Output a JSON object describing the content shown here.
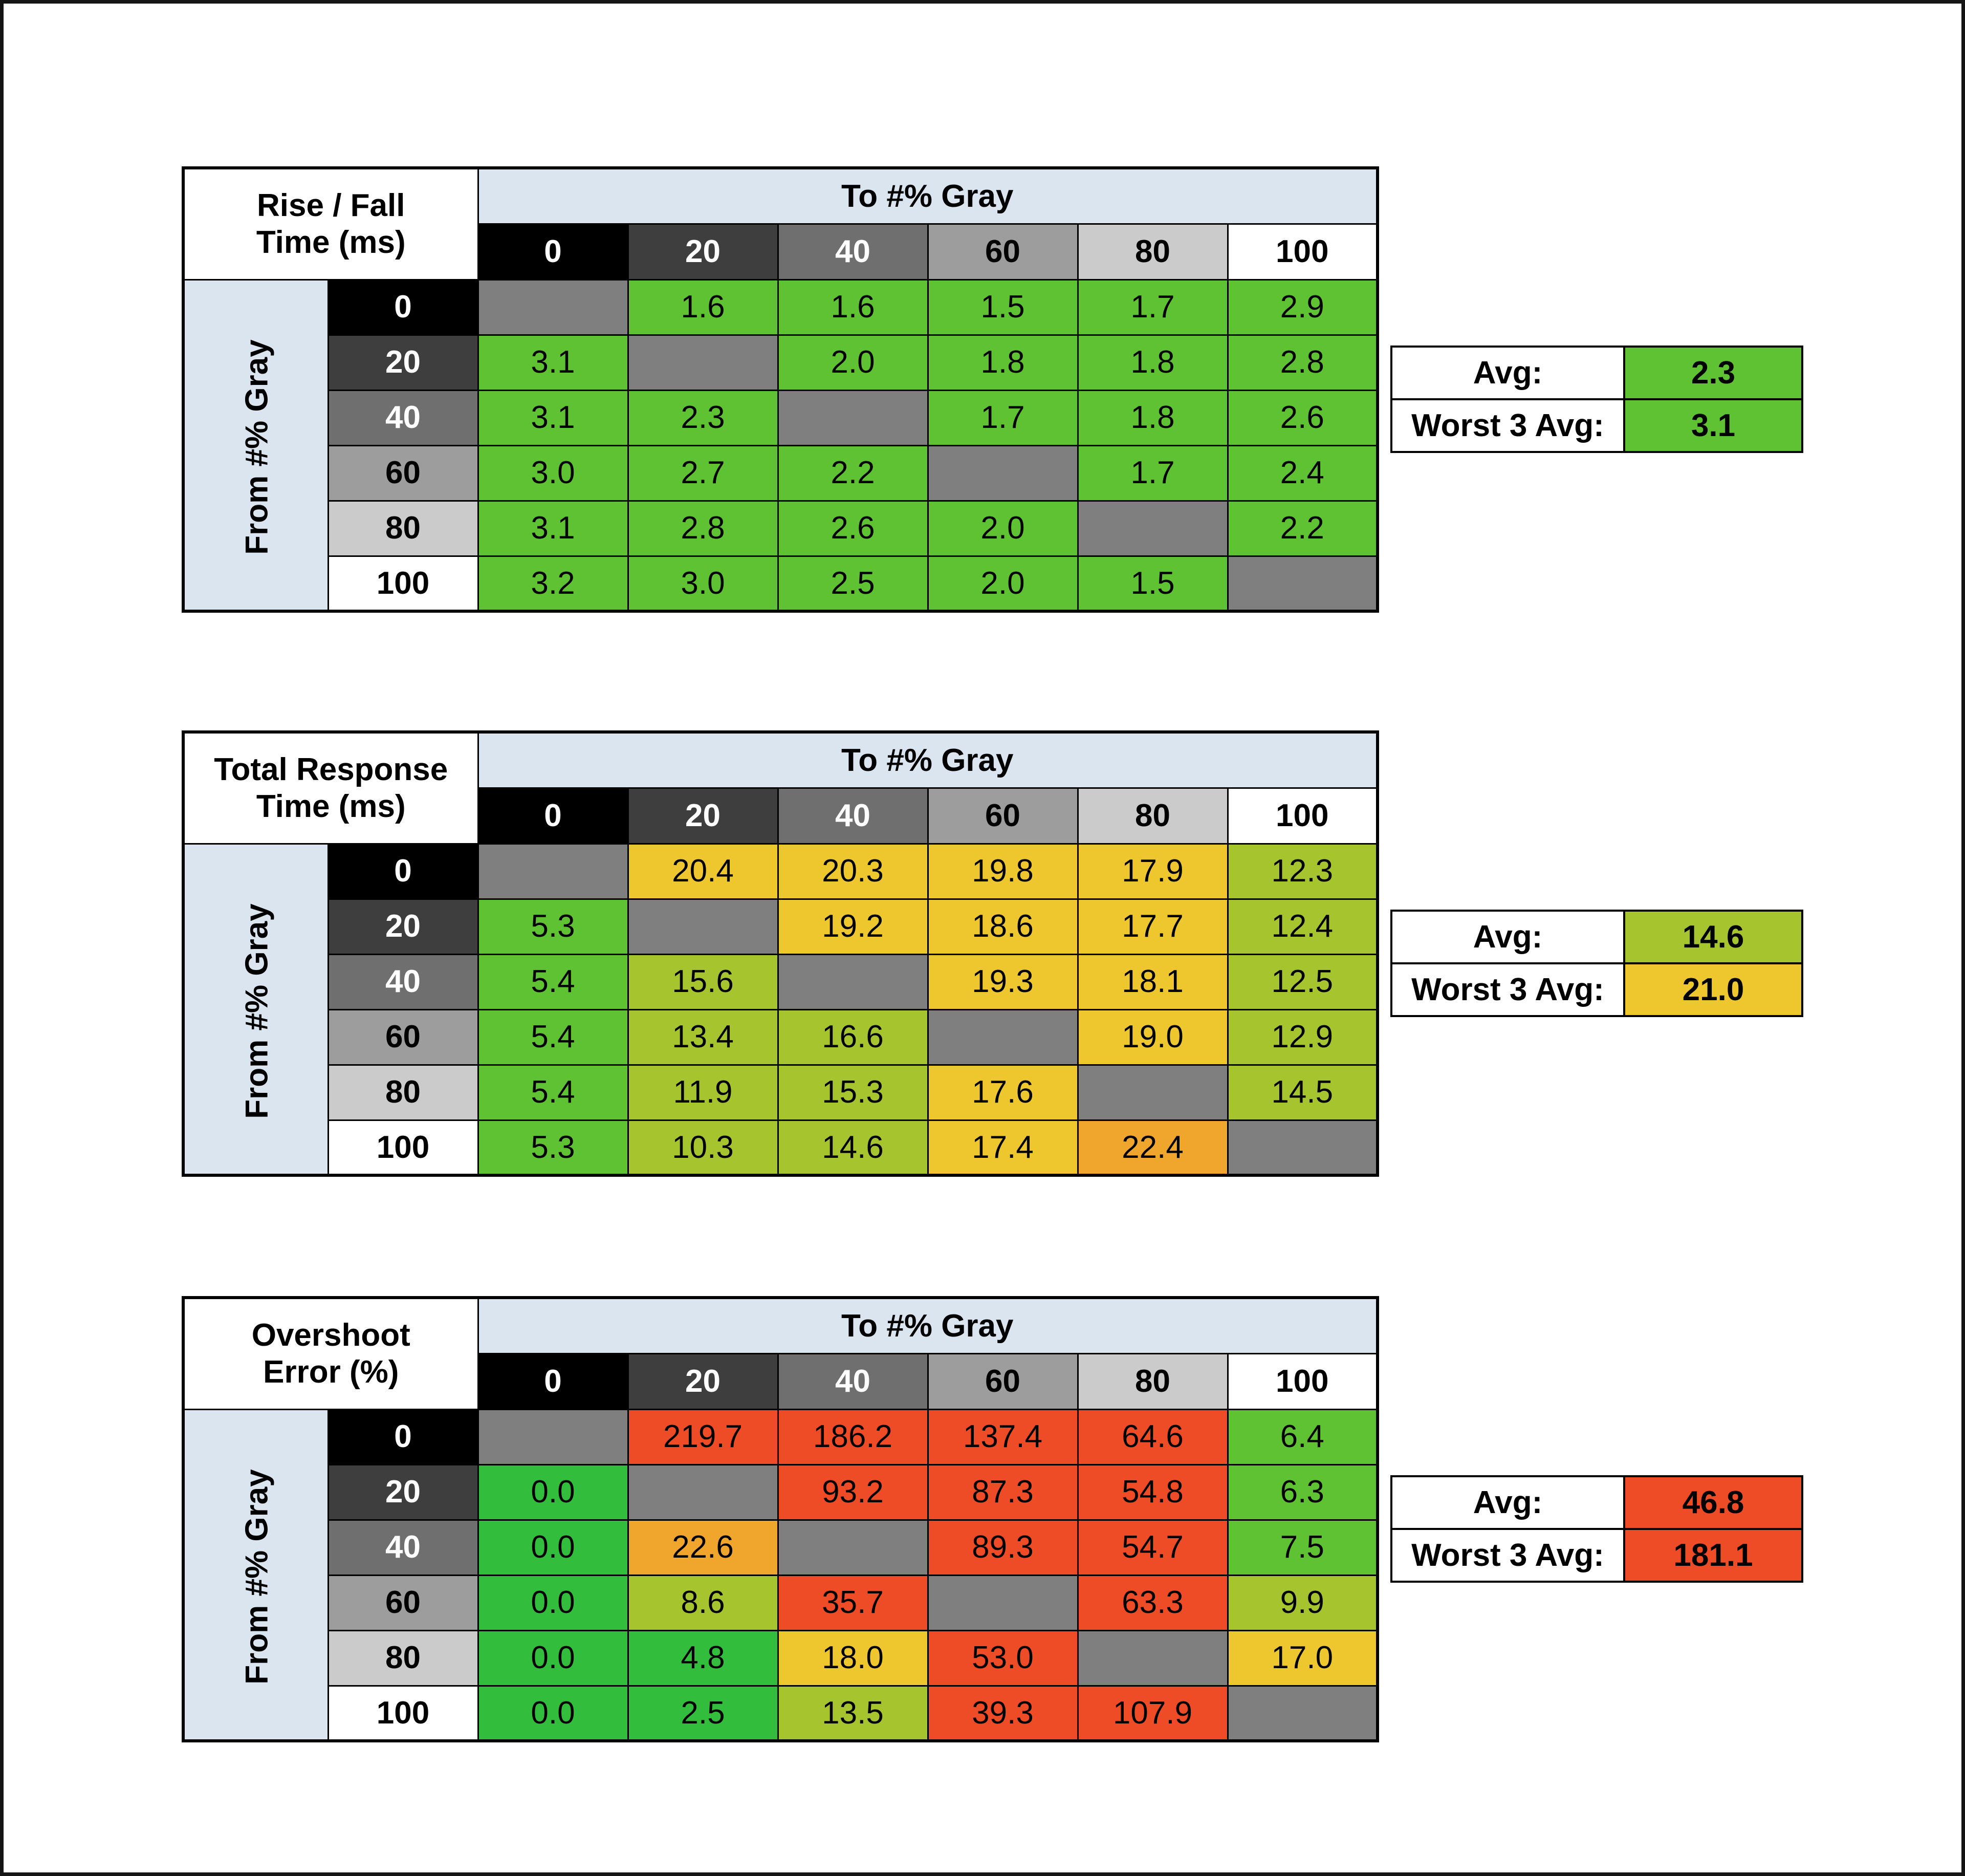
{
  "page": {
    "background": "#ffffff",
    "border_color": "#161616"
  },
  "palette": {
    "green": "#33bd3c",
    "green2": "#5ec232",
    "yellowgreen": "#a6c42e",
    "yellow": "#eec72f",
    "orange": "#f0a62c",
    "red": "#ee4c27"
  },
  "grays": [
    "#000000",
    "#3e3e3e",
    "#6f6f6f",
    "#9d9d9d",
    "#cbcbcb",
    "#ffffff"
  ],
  "colors": {
    "diag": "#7f7f7f",
    "header_blue": "#dbe5f0",
    "grid": "#000000"
  },
  "chart_data": [
    {
      "type": "heatmap",
      "title": "Rise / Fall Time (ms)",
      "title_line1": "Rise / Fall",
      "title_line2": "Time (ms)",
      "x_label": "To #% Gray",
      "y_label": "From #% Gray",
      "x_ticks": [
        "0",
        "20",
        "40",
        "60",
        "80",
        "100"
      ],
      "y_ticks": [
        "0",
        "20",
        "40",
        "60",
        "80",
        "100"
      ],
      "rows": [
        [
          null,
          {
            "v": "1.6",
            "c": "green2"
          },
          {
            "v": "1.6",
            "c": "green2"
          },
          {
            "v": "1.5",
            "c": "green2"
          },
          {
            "v": "1.7",
            "c": "green2"
          },
          {
            "v": "2.9",
            "c": "green2"
          }
        ],
        [
          {
            "v": "3.1",
            "c": "green2"
          },
          null,
          {
            "v": "2.0",
            "c": "green2"
          },
          {
            "v": "1.8",
            "c": "green2"
          },
          {
            "v": "1.8",
            "c": "green2"
          },
          {
            "v": "2.8",
            "c": "green2"
          }
        ],
        [
          {
            "v": "3.1",
            "c": "green2"
          },
          {
            "v": "2.3",
            "c": "green2"
          },
          null,
          {
            "v": "1.7",
            "c": "green2"
          },
          {
            "v": "1.8",
            "c": "green2"
          },
          {
            "v": "2.6",
            "c": "green2"
          }
        ],
        [
          {
            "v": "3.0",
            "c": "green2"
          },
          {
            "v": "2.7",
            "c": "green2"
          },
          {
            "v": "2.2",
            "c": "green2"
          },
          null,
          {
            "v": "1.7",
            "c": "green2"
          },
          {
            "v": "2.4",
            "c": "green2"
          }
        ],
        [
          {
            "v": "3.1",
            "c": "green2"
          },
          {
            "v": "2.8",
            "c": "green2"
          },
          {
            "v": "2.6",
            "c": "green2"
          },
          {
            "v": "2.0",
            "c": "green2"
          },
          null,
          {
            "v": "2.2",
            "c": "green2"
          }
        ],
        [
          {
            "v": "3.2",
            "c": "green2"
          },
          {
            "v": "3.0",
            "c": "green2"
          },
          {
            "v": "2.5",
            "c": "green2"
          },
          {
            "v": "2.0",
            "c": "green2"
          },
          {
            "v": "1.5",
            "c": "green2"
          },
          null
        ]
      ],
      "avg": {
        "label": "Avg:",
        "value": "2.3",
        "c": "green2"
      },
      "worst": {
        "label": "Worst 3 Avg:",
        "value": "3.1",
        "c": "green2"
      }
    },
    {
      "type": "heatmap",
      "title": "Total Response Time (ms)",
      "title_line1": "Total Response",
      "title_line2": "Time (ms)",
      "x_label": "To #% Gray",
      "y_label": "From #% Gray",
      "x_ticks": [
        "0",
        "20",
        "40",
        "60",
        "80",
        "100"
      ],
      "y_ticks": [
        "0",
        "20",
        "40",
        "60",
        "80",
        "100"
      ],
      "rows": [
        [
          null,
          {
            "v": "20.4",
            "c": "yellow"
          },
          {
            "v": "20.3",
            "c": "yellow"
          },
          {
            "v": "19.8",
            "c": "yellow"
          },
          {
            "v": "17.9",
            "c": "yellow"
          },
          {
            "v": "12.3",
            "c": "yellowgreen"
          }
        ],
        [
          {
            "v": "5.3",
            "c": "green2"
          },
          null,
          {
            "v": "19.2",
            "c": "yellow"
          },
          {
            "v": "18.6",
            "c": "yellow"
          },
          {
            "v": "17.7",
            "c": "yellow"
          },
          {
            "v": "12.4",
            "c": "yellowgreen"
          }
        ],
        [
          {
            "v": "5.4",
            "c": "green2"
          },
          {
            "v": "15.6",
            "c": "yellowgreen"
          },
          null,
          {
            "v": "19.3",
            "c": "yellow"
          },
          {
            "v": "18.1",
            "c": "yellow"
          },
          {
            "v": "12.5",
            "c": "yellowgreen"
          }
        ],
        [
          {
            "v": "5.4",
            "c": "green2"
          },
          {
            "v": "13.4",
            "c": "yellowgreen"
          },
          {
            "v": "16.6",
            "c": "yellowgreen"
          },
          null,
          {
            "v": "19.0",
            "c": "yellow"
          },
          {
            "v": "12.9",
            "c": "yellowgreen"
          }
        ],
        [
          {
            "v": "5.4",
            "c": "green2"
          },
          {
            "v": "11.9",
            "c": "yellowgreen"
          },
          {
            "v": "15.3",
            "c": "yellowgreen"
          },
          {
            "v": "17.6",
            "c": "yellow"
          },
          null,
          {
            "v": "14.5",
            "c": "yellowgreen"
          }
        ],
        [
          {
            "v": "5.3",
            "c": "green2"
          },
          {
            "v": "10.3",
            "c": "yellowgreen"
          },
          {
            "v": "14.6",
            "c": "yellowgreen"
          },
          {
            "v": "17.4",
            "c": "yellow"
          },
          {
            "v": "22.4",
            "c": "orange"
          },
          null
        ]
      ],
      "avg": {
        "label": "Avg:",
        "value": "14.6",
        "c": "yellowgreen"
      },
      "worst": {
        "label": "Worst 3 Avg:",
        "value": "21.0",
        "c": "yellow"
      }
    },
    {
      "type": "heatmap",
      "title": "Overshoot Error (%)",
      "title_line1": "Overshoot",
      "title_line2": "Error (%)",
      "x_label": "To #% Gray",
      "y_label": "From #% Gray",
      "x_ticks": [
        "0",
        "20",
        "40",
        "60",
        "80",
        "100"
      ],
      "y_ticks": [
        "0",
        "20",
        "40",
        "60",
        "80",
        "100"
      ],
      "rows": [
        [
          null,
          {
            "v": "219.7",
            "c": "red"
          },
          {
            "v": "186.2",
            "c": "red"
          },
          {
            "v": "137.4",
            "c": "red"
          },
          {
            "v": "64.6",
            "c": "red"
          },
          {
            "v": "6.4",
            "c": "green2"
          }
        ],
        [
          {
            "v": "0.0",
            "c": "green"
          },
          null,
          {
            "v": "93.2",
            "c": "red"
          },
          {
            "v": "87.3",
            "c": "red"
          },
          {
            "v": "54.8",
            "c": "red"
          },
          {
            "v": "6.3",
            "c": "green2"
          }
        ],
        [
          {
            "v": "0.0",
            "c": "green"
          },
          {
            "v": "22.6",
            "c": "orange"
          },
          null,
          {
            "v": "89.3",
            "c": "red"
          },
          {
            "v": "54.7",
            "c": "red"
          },
          {
            "v": "7.5",
            "c": "green2"
          }
        ],
        [
          {
            "v": "0.0",
            "c": "green"
          },
          {
            "v": "8.6",
            "c": "yellowgreen"
          },
          {
            "v": "35.7",
            "c": "red"
          },
          null,
          {
            "v": "63.3",
            "c": "red"
          },
          {
            "v": "9.9",
            "c": "yellowgreen"
          }
        ],
        [
          {
            "v": "0.0",
            "c": "green"
          },
          {
            "v": "4.8",
            "c": "green"
          },
          {
            "v": "18.0",
            "c": "yellow"
          },
          {
            "v": "53.0",
            "c": "red"
          },
          null,
          {
            "v": "17.0",
            "c": "yellow"
          }
        ],
        [
          {
            "v": "0.0",
            "c": "green"
          },
          {
            "v": "2.5",
            "c": "green"
          },
          {
            "v": "13.5",
            "c": "yellowgreen"
          },
          {
            "v": "39.3",
            "c": "red"
          },
          {
            "v": "107.9",
            "c": "red"
          },
          null
        ]
      ],
      "avg": {
        "label": "Avg:",
        "value": "46.8",
        "c": "red"
      },
      "worst": {
        "label": "Worst 3 Avg:",
        "value": "181.1",
        "c": "red"
      }
    }
  ]
}
